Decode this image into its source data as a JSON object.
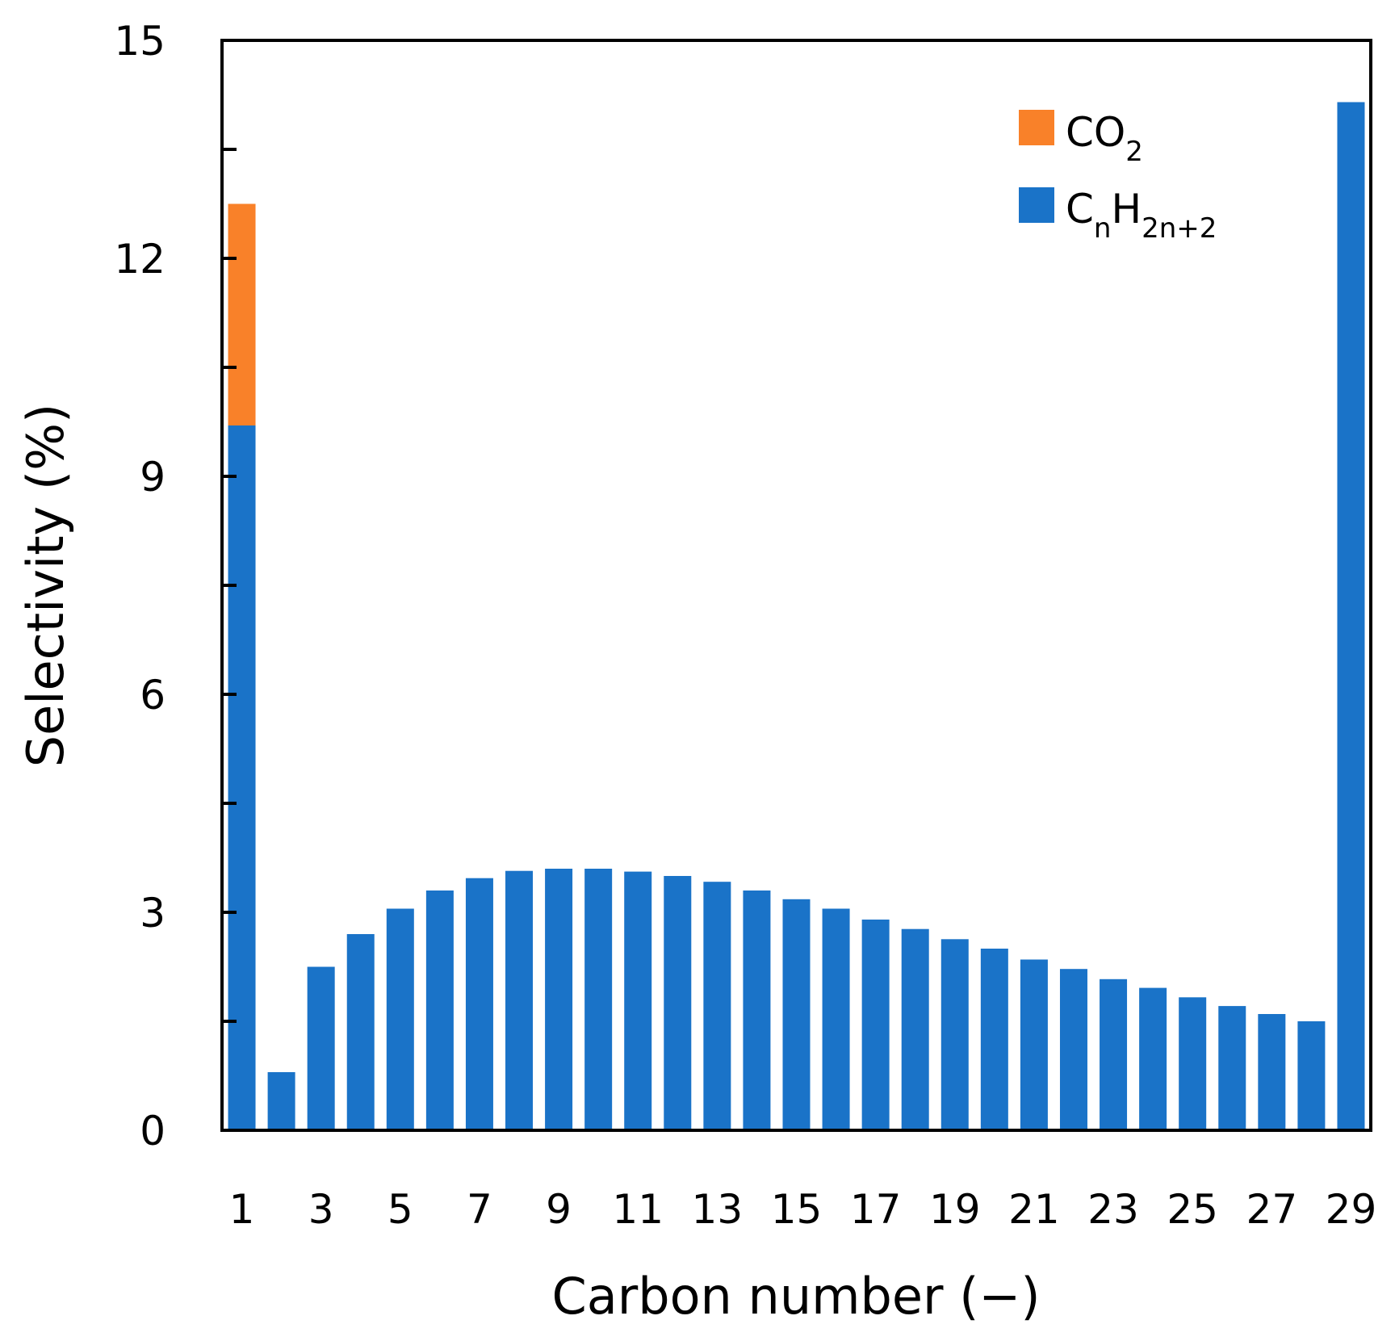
{
  "chart_data": {
    "type": "bar",
    "stacked": true,
    "title": "",
    "xlabel": "Carbon number (−)",
    "ylabel": "Selectivity (%)",
    "ylim": [
      0,
      15
    ],
    "yticks": [
      0,
      3,
      6,
      9,
      12,
      15
    ],
    "x": [
      1,
      2,
      3,
      4,
      5,
      6,
      7,
      8,
      9,
      10,
      11,
      12,
      13,
      14,
      15,
      16,
      17,
      18,
      19,
      20,
      21,
      22,
      23,
      24,
      25,
      26,
      27,
      28,
      29
    ],
    "xtick_labels": [
      "1",
      "3",
      "5",
      "7",
      "9",
      "11",
      "13",
      "15",
      "17",
      "19",
      "21",
      "23",
      "25",
      "27",
      "29"
    ],
    "series": [
      {
        "name": "CnH2n+2",
        "legend_main_1": "C",
        "legend_sub_1": "n",
        "legend_main_2": "H",
        "legend_sub_2": "2n+2",
        "color": "#1a73c8",
        "values": [
          9.7,
          0.8,
          2.25,
          2.7,
          3.05,
          3.3,
          3.47,
          3.57,
          3.6,
          3.6,
          3.56,
          3.5,
          3.42,
          3.3,
          3.18,
          3.05,
          2.9,
          2.77,
          2.63,
          2.5,
          2.35,
          2.22,
          2.08,
          1.96,
          1.83,
          1.71,
          1.6,
          1.5,
          14.15
        ]
      },
      {
        "name": "CO2",
        "legend_main_1": "CO",
        "legend_sub_1": "2",
        "color": "#f98129",
        "values": [
          3.05,
          0,
          0,
          0,
          0,
          0,
          0,
          0,
          0,
          0,
          0,
          0,
          0,
          0,
          0,
          0,
          0,
          0,
          0,
          0,
          0,
          0,
          0,
          0,
          0,
          0,
          0,
          0,
          0
        ]
      }
    ],
    "legend_position": "top-right"
  }
}
